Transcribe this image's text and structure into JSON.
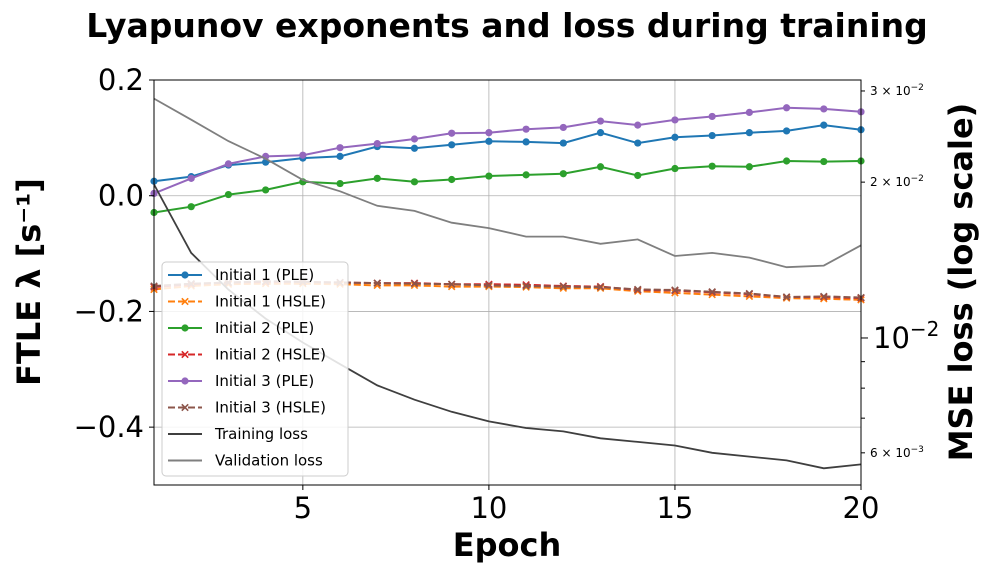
{
  "chart_data": {
    "type": "line",
    "title": "Lyapunov exponents and loss during training",
    "xlabel": "Epoch",
    "ylabel": "FTLE λ [s⁻¹]",
    "ylabel_right": "MSE loss (log scale)",
    "xlim": [
      1,
      20
    ],
    "ylim": [
      -0.5,
      0.2
    ],
    "ylim_right": [
      0.0052,
      0.0315
    ],
    "yscale_right": "log",
    "grid": true,
    "legend_position": "lower-left",
    "x_ticks": [
      {
        "value": 5,
        "label": "5"
      },
      {
        "value": 10,
        "label": "10"
      },
      {
        "value": 15,
        "label": "15"
      },
      {
        "value": 20,
        "label": "20"
      }
    ],
    "y_ticks": [
      {
        "value": 0.2,
        "label": "0.2"
      },
      {
        "value": 0.0,
        "label": "0.0"
      },
      {
        "value": -0.2,
        "label": "−0.2"
      },
      {
        "value": -0.4,
        "label": "−0.4"
      }
    ],
    "y_right_ticks": [
      {
        "value": 0.03,
        "base": "3 × 10",
        "exp": "−2",
        "major": false
      },
      {
        "value": 0.02,
        "base": "2 × 10",
        "exp": "−2",
        "major": false
      },
      {
        "value": 0.01,
        "base": "10",
        "exp": "−2",
        "major": true
      },
      {
        "value": 0.006,
        "base": "6 × 10",
        "exp": "−3",
        "major": false
      }
    ],
    "y_right_minor_ticks": [
      0.009,
      0.008,
      0.007
    ],
    "x": [
      1,
      2,
      3,
      4,
      5,
      6,
      7,
      8,
      9,
      10,
      11,
      12,
      13,
      14,
      15,
      16,
      17,
      18,
      19,
      20
    ],
    "series": [
      {
        "name": "Initial 1 (PLE)",
        "axis": "left",
        "color": "#1f77b4",
        "dash": "solid",
        "marker": "circle",
        "values": [
          0.025,
          0.033,
          0.053,
          0.058,
          0.065,
          0.068,
          0.085,
          0.082,
          0.088,
          0.094,
          0.093,
          0.091,
          0.109,
          0.091,
          0.101,
          0.104,
          0.109,
          0.112,
          0.122,
          0.114
        ]
      },
      {
        "name": "Initial 1 (HSLE)",
        "axis": "left",
        "color": "#ff7f0e",
        "dash": "dashed",
        "marker": "x",
        "values": [
          -0.162,
          -0.156,
          -0.153,
          -0.152,
          -0.152,
          -0.153,
          -0.155,
          -0.155,
          -0.157,
          -0.157,
          -0.158,
          -0.16,
          -0.16,
          -0.165,
          -0.168,
          -0.171,
          -0.174,
          -0.177,
          -0.178,
          -0.18
        ]
      },
      {
        "name": "Initial 2 (PLE)",
        "axis": "left",
        "color": "#2ca02c",
        "dash": "solid",
        "marker": "circle",
        "values": [
          -0.029,
          -0.019,
          0.002,
          0.01,
          0.024,
          0.021,
          0.03,
          0.024,
          0.028,
          0.034,
          0.036,
          0.038,
          0.05,
          0.035,
          0.047,
          0.051,
          0.05,
          0.06,
          0.059,
          0.06
        ]
      },
      {
        "name": "Initial 2 (HSLE)",
        "axis": "left",
        "color": "#d62728",
        "dash": "dashed",
        "marker": "x",
        "values": [
          -0.158,
          -0.153,
          -0.15,
          -0.149,
          -0.149,
          -0.15,
          -0.151,
          -0.151,
          -0.153,
          -0.153,
          -0.154,
          -0.156,
          -0.157,
          -0.163,
          -0.164,
          -0.167,
          -0.17,
          -0.175,
          -0.175,
          -0.177
        ]
      },
      {
        "name": "Initial 3 (PLE)",
        "axis": "left",
        "color": "#9467bd",
        "dash": "solid",
        "marker": "circle",
        "values": [
          0.004,
          0.03,
          0.055,
          0.068,
          0.07,
          0.083,
          0.09,
          0.098,
          0.108,
          0.109,
          0.115,
          0.118,
          0.129,
          0.122,
          0.131,
          0.137,
          0.144,
          0.152,
          0.15,
          0.145
        ]
      },
      {
        "name": "Initial 3 (HSLE)",
        "axis": "left",
        "color": "#8c564b",
        "dash": "dashed",
        "marker": "x",
        "values": [
          -0.156,
          -0.152,
          -0.15,
          -0.148,
          -0.149,
          -0.15,
          -0.151,
          -0.152,
          -0.153,
          -0.155,
          -0.156,
          -0.157,
          -0.158,
          -0.162,
          -0.163,
          -0.166,
          -0.169,
          -0.175,
          -0.174,
          -0.176
        ]
      },
      {
        "name": "Training loss",
        "axis": "right",
        "color": "#3f3f3f",
        "dash": "solid",
        "marker": "none",
        "values": [
          0.0198,
          0.0146,
          0.0124,
          0.0109,
          0.0098,
          0.0089,
          0.0081,
          0.0076,
          0.0072,
          0.0069,
          0.0067,
          0.0066,
          0.0064,
          0.0063,
          0.0062,
          0.006,
          0.0059,
          0.0058,
          0.0056,
          0.0057
        ]
      },
      {
        "name": "Validation loss",
        "axis": "right",
        "color": "#7f7f7f",
        "dash": "solid",
        "marker": "none",
        "values": [
          0.029,
          0.0264,
          0.024,
          0.0222,
          0.0202,
          0.0192,
          0.018,
          0.0176,
          0.0167,
          0.0163,
          0.0157,
          0.0157,
          0.0152,
          0.0155,
          0.0144,
          0.0146,
          0.0143,
          0.0137,
          0.0138,
          0.0151
        ]
      }
    ]
  }
}
